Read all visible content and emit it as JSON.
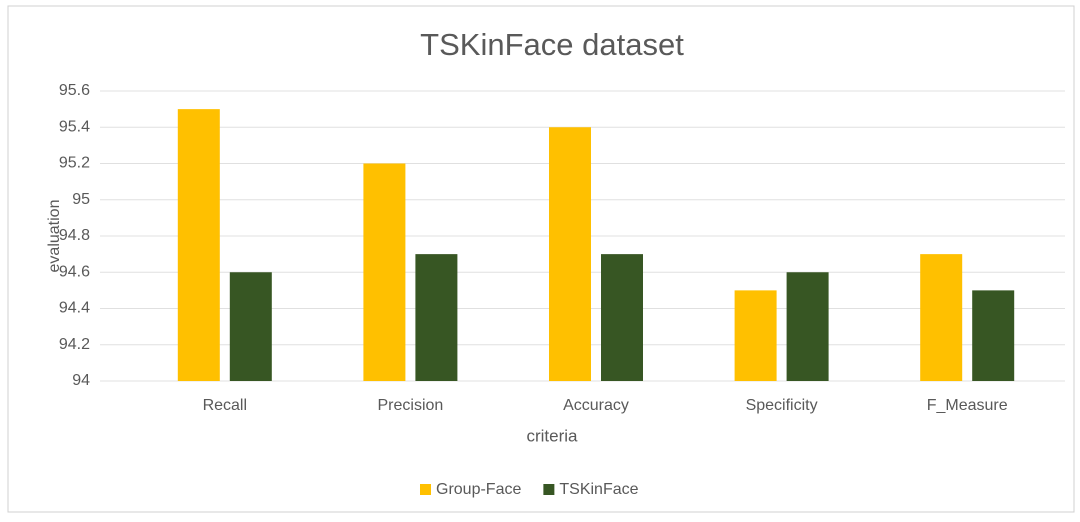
{
  "chart_data": {
    "type": "bar",
    "title": "TSKinFace dataset",
    "x_label": "criteria",
    "y_label": "evaluation",
    "categories": [
      "Recall",
      "Precision",
      "Accuracy",
      "Specificity",
      "F_Measure"
    ],
    "series": [
      {
        "name": "Group-Face",
        "color": "#ffc000",
        "values": [
          95.5,
          95.2,
          95.4,
          94.5,
          94.7
        ]
      },
      {
        "name": "TSKinFace",
        "color": "#375623",
        "values": [
          94.6,
          94.7,
          94.7,
          94.6,
          94.5
        ]
      }
    ],
    "ylim": [
      94,
      95.6
    ],
    "yticks": [
      94,
      94.2,
      94.4,
      94.6,
      94.8,
      95,
      95.2,
      95.4,
      95.6
    ],
    "grid": true,
    "legend": "bottom"
  }
}
